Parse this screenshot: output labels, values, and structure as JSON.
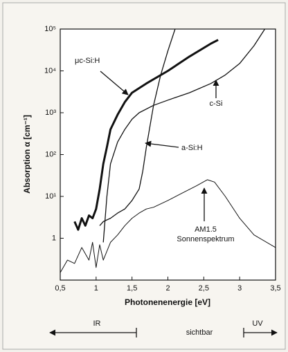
{
  "chart_data": {
    "type": "line",
    "x_label": "Photonenenergie [eV]",
    "y_label": "Absorption α [cm⁻¹]",
    "xlim": [
      0.5,
      3.5
    ],
    "xticks": [
      {
        "value": 0.5,
        "label": "0,5"
      },
      1,
      {
        "value": 1.5,
        "label": "1,5"
      },
      2,
      {
        "value": 2.5,
        "label": "2,5"
      },
      3,
      {
        "value": 3.5,
        "label": "3,5"
      }
    ],
    "ylim": [
      0.1,
      100000
    ],
    "yticks": [
      1,
      {
        "value": 10,
        "label": "10¹"
      },
      {
        "value": 100,
        "label": "10²"
      },
      {
        "value": 1000,
        "label": "10³"
      },
      {
        "value": 10000,
        "label": "10⁴"
      },
      {
        "value": 100000,
        "label": "10⁵"
      }
    ],
    "y_scale": "log",
    "series": [
      {
        "name": "μc-Si:H",
        "color": "#111111",
        "line_width": 3,
        "x": [
          0.7,
          0.75,
          0.8,
          0.85,
          0.9,
          0.95,
          1.0,
          1.05,
          1.1,
          1.15,
          1.2,
          1.3,
          1.4,
          1.5,
          1.7,
          2.0,
          2.3,
          2.6,
          2.7
        ],
        "values": [
          2.5,
          1.6,
          3,
          2,
          3.5,
          3,
          5,
          15,
          60,
          150,
          400,
          900,
          1800,
          3000,
          5000,
          10000,
          22000,
          45000,
          55000
        ]
      },
      {
        "name": "c-Si",
        "color": "#111111",
        "line_width": 1.3,
        "x": [
          1.1,
          1.15,
          1.2,
          1.3,
          1.4,
          1.5,
          1.6,
          1.8,
          2.0,
          2.3,
          2.6,
          2.8,
          3.0,
          3.2,
          3.35
        ],
        "values": [
          0.8,
          10,
          60,
          200,
          400,
          700,
          1000,
          1500,
          2000,
          3000,
          5000,
          8000,
          15000,
          40000,
          100000
        ]
      },
      {
        "name": "a-Si:H",
        "color": "#111111",
        "line_width": 1.3,
        "x": [
          1.05,
          1.1,
          1.2,
          1.3,
          1.4,
          1.5,
          1.6,
          1.65,
          1.7,
          1.8,
          1.9,
          2.0,
          2.1
        ],
        "values": [
          2,
          2.5,
          3,
          4,
          5,
          8,
          15,
          40,
          150,
          1500,
          8000,
          30000,
          100000
        ]
      },
      {
        "name": "AM1.5 Sonnenspektrum",
        "color": "#111111",
        "line_width": 1,
        "x": [
          0.5,
          0.6,
          0.7,
          0.8,
          0.9,
          0.95,
          1.0,
          1.05,
          1.1,
          1.2,
          1.3,
          1.4,
          1.5,
          1.6,
          1.7,
          1.8,
          2.0,
          2.2,
          2.4,
          2.55,
          2.65,
          2.8,
          3.0,
          3.2,
          3.5
        ],
        "values": [
          0.15,
          0.3,
          0.25,
          0.6,
          0.3,
          0.8,
          0.2,
          0.7,
          0.3,
          0.8,
          1.2,
          2,
          3,
          4,
          5,
          5.5,
          8,
          12,
          18,
          25,
          22,
          10,
          3,
          1.2,
          0.6
        ]
      }
    ],
    "annotations": [
      "μc-Si:H",
      "c-Si",
      "a-Si:H",
      "AM1.5",
      "Sonnenspektrum",
      "IR",
      "sichtbar",
      "UV"
    ]
  }
}
